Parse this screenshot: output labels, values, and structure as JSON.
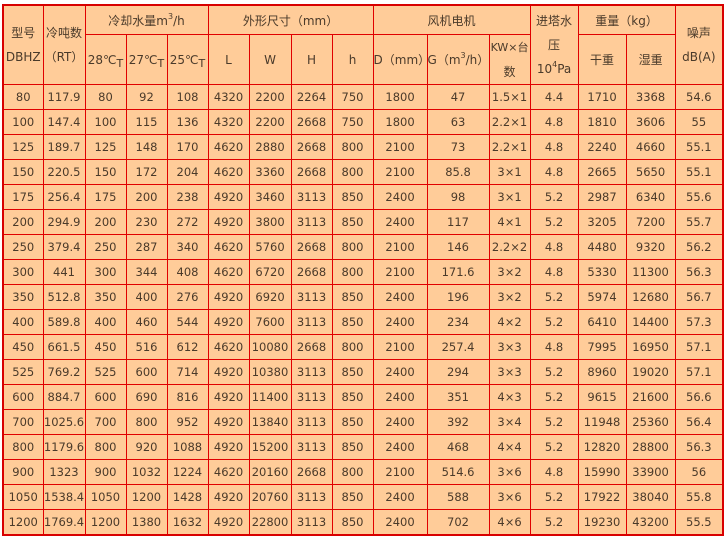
{
  "header": {
    "model": [
      "型号",
      "DBHZ"
    ],
    "tonnage": [
      "冷吨数",
      "（RT）"
    ],
    "cooling_water": {
      "label": "冷却水量m",
      "sup": "3",
      "suffix": "/h",
      "temps": [
        [
          "28℃",
          "T"
        ],
        [
          "27℃",
          "T"
        ],
        [
          "25℃",
          "T"
        ]
      ]
    },
    "dimensions": {
      "label": "外形尺寸（mm）",
      "cols": [
        "L",
        "W",
        "H",
        "h"
      ]
    },
    "fan_motor": {
      "label": "风机电机",
      "d": "D（mm）",
      "g": {
        "pre": "G（m",
        "sup": "3",
        "post": "/h）"
      },
      "kw": [
        "KW×台",
        "数"
      ]
    },
    "inlet_pressure": {
      "lines": [
        "进塔水",
        "压"
      ],
      "unit_pre": "10",
      "unit_sup": "4",
      "unit_post": "Pa"
    },
    "weight": {
      "label": "重量（kg）",
      "cols": [
        "干重",
        "湿重"
      ]
    },
    "noise": [
      "噪声",
      "dB(A)"
    ]
  },
  "rows": [
    [
      "80",
      "117.9",
      "80",
      "92",
      "108",
      "4320",
      "2200",
      "2264",
      "750",
      "1800",
      "47",
      "1.5×1",
      "4.4",
      "1710",
      "3368",
      "54.6"
    ],
    [
      "100",
      "147.4",
      "100",
      "115",
      "136",
      "4320",
      "2200",
      "2668",
      "750",
      "1800",
      "63",
      "2.2×1",
      "4.8",
      "1810",
      "3606",
      "55"
    ],
    [
      "125",
      "189.7",
      "125",
      "148",
      "170",
      "4620",
      "2880",
      "2668",
      "800",
      "2100",
      "73",
      "2.2×1",
      "4.8",
      "2240",
      "4660",
      "55.1"
    ],
    [
      "150",
      "220.5",
      "150",
      "172",
      "204",
      "4620",
      "3360",
      "2668",
      "800",
      "2100",
      "85.8",
      "3×1",
      "4.8",
      "2665",
      "5650",
      "55.1"
    ],
    [
      "175",
      "256.4",
      "175",
      "200",
      "238",
      "4920",
      "3460",
      "3113",
      "850",
      "2400",
      "98",
      "3×1",
      "5.2",
      "2987",
      "6340",
      "55.6"
    ],
    [
      "200",
      "294.9",
      "200",
      "230",
      "272",
      "4920",
      "3800",
      "3113",
      "850",
      "2400",
      "117",
      "4×1",
      "5.2",
      "3205",
      "7200",
      "55.7"
    ],
    [
      "250",
      "379.4",
      "250",
      "287",
      "340",
      "4620",
      "5760",
      "2668",
      "800",
      "2100",
      "146",
      "2.2×2",
      "4.8",
      "4480",
      "9320",
      "56.2"
    ],
    [
      "300",
      "441",
      "300",
      "344",
      "408",
      "4620",
      "6720",
      "2668",
      "800",
      "2100",
      "171.6",
      "3×2",
      "4.8",
      "5330",
      "11300",
      "56.3"
    ],
    [
      "350",
      "512.8",
      "350",
      "400",
      "276",
      "4920",
      "6920",
      "3113",
      "850",
      "2400",
      "196",
      "3×2",
      "5.2",
      "5974",
      "12680",
      "56.7"
    ],
    [
      "400",
      "589.8",
      "400",
      "460",
      "544",
      "4920",
      "7600",
      "3113",
      "850",
      "2400",
      "234",
      "4×2",
      "5.2",
      "6410",
      "14400",
      "57.3"
    ],
    [
      "450",
      "661.5",
      "450",
      "516",
      "612",
      "4620",
      "10080",
      "2668",
      "800",
      "2100",
      "257.4",
      "3×3",
      "4.8",
      "7995",
      "16950",
      "57.1"
    ],
    [
      "525",
      "769.2",
      "525",
      "600",
      "714",
      "4920",
      "10380",
      "3113",
      "850",
      "2400",
      "294",
      "3×3",
      "5.2",
      "8960",
      "19020",
      "57.1"
    ],
    [
      "600",
      "884.7",
      "600",
      "690",
      "816",
      "4920",
      "11400",
      "3113",
      "850",
      "2400",
      "351",
      "4×3",
      "5.2",
      "9615",
      "21600",
      "56.6"
    ],
    [
      "700",
      "1025.6",
      "700",
      "800",
      "952",
      "4920",
      "13840",
      "3113",
      "850",
      "2400",
      "392",
      "3×4",
      "5.2",
      "11948",
      "25360",
      "56.4"
    ],
    [
      "800",
      "1179.6",
      "800",
      "920",
      "1088",
      "4920",
      "15200",
      "3113",
      "850",
      "2400",
      "468",
      "4×4",
      "5.2",
      "12820",
      "28800",
      "56.3"
    ],
    [
      "900",
      "1323",
      "900",
      "1032",
      "1224",
      "4620",
      "20160",
      "2668",
      "800",
      "2100",
      "514.6",
      "3×6",
      "4.8",
      "15990",
      "33900",
      "56"
    ],
    [
      "1050",
      "1538.4",
      "1050",
      "1200",
      "1428",
      "4920",
      "20760",
      "3113",
      "850",
      "2400",
      "588",
      "3×6",
      "5.2",
      "17922",
      "38040",
      "55.8"
    ],
    [
      "1200",
      "1769.4",
      "1200",
      "1380",
      "1632",
      "4920",
      "22800",
      "3113",
      "850",
      "2400",
      "702",
      "4×6",
      "5.2",
      "19230",
      "43200",
      "55.5"
    ]
  ],
  "colors": {
    "background": "#FFCC99",
    "border": "#E00000",
    "text": "#4a3a2a"
  }
}
